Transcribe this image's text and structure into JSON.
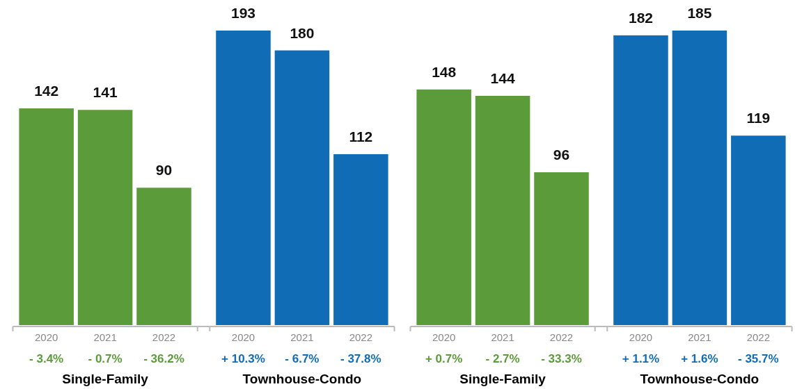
{
  "chart_data": [
    {
      "type": "bar",
      "categories": [
        "2020",
        "2021",
        "2022",
        "2020",
        "2021",
        "2022"
      ],
      "data_labels": true,
      "values": [
        142,
        141,
        90,
        193,
        180,
        112
      ],
      "colors": [
        "#5b9b3a",
        "#5b9b3a",
        "#5b9b3a",
        "#116cb6",
        "#116cb6",
        "#116cb6"
      ],
      "annotations": [
        "- 3.4%",
        "- 0.7%",
        "- 36.2%",
        "+ 10.3%",
        "- 6.7%",
        "- 37.8%",
        "Single-Family",
        "Townhouse-Condo"
      ]
    },
    {
      "type": "bar",
      "categories": [
        "2020",
        "2021",
        "2022",
        "2020",
        "2021",
        "2022"
      ],
      "data_labels": true,
      "values": [
        148,
        144,
        96,
        182,
        185,
        119
      ],
      "colors": [
        "#5b9b3a",
        "#5b9b3a",
        "#5b9b3a",
        "#116cb6",
        "#116cb6",
        "#116cb6"
      ],
      "annotations": [
        "+ 0.7%",
        "- 2.7%",
        "- 33.3%",
        "+ 1.1%",
        "+ 1.6%",
        "- 35.7%",
        "Single-Family",
        "Townhouse-Condo"
      ]
    }
  ]
}
